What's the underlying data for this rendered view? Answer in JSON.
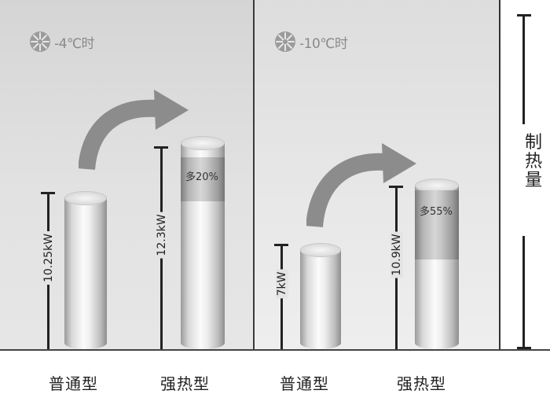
{
  "chart_data": {
    "type": "bar",
    "ylabel": "制热量",
    "groups": [
      {
        "condition": "-4℃时",
        "bars": [
          {
            "category": "普通型",
            "value": 10.25,
            "label": "10.25kW"
          },
          {
            "category": "强热型",
            "value": 12.3,
            "label": "12.3kW",
            "increase_label": "多20%"
          }
        ]
      },
      {
        "condition": "-10℃时",
        "bars": [
          {
            "category": "普通型",
            "value": 7,
            "label": "7kW"
          },
          {
            "category": "强热型",
            "value": 10.9,
            "label": "10.9kW",
            "increase_label": "多55%"
          }
        ]
      }
    ],
    "categories": [
      "普通型",
      "强热型",
      "普通型",
      "强热型"
    ],
    "values": [
      10.25,
      12.3,
      7,
      10.9
    ],
    "ylim": [
      0,
      14.5
    ]
  }
}
